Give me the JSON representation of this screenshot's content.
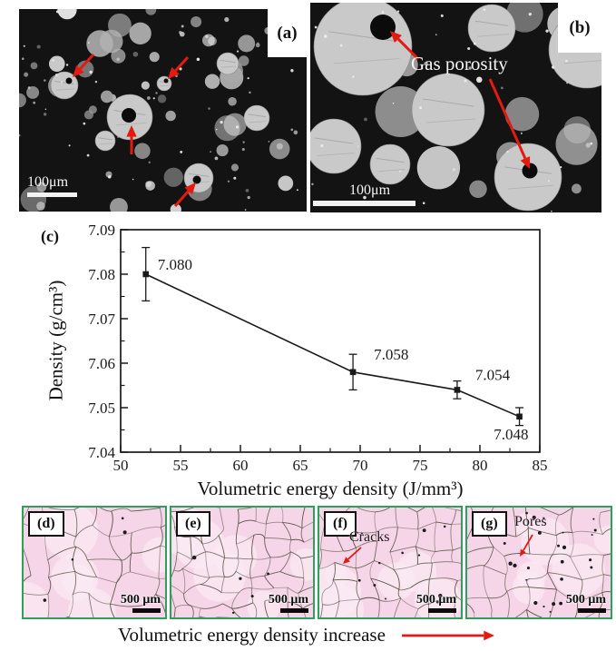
{
  "panels": {
    "a": {
      "label": "(a)",
      "scale_bar": "100μm"
    },
    "b": {
      "label": "(b)",
      "scale_bar": "100μm",
      "annotation": "Gas porosity"
    },
    "c": {
      "label": "(c)"
    },
    "d": {
      "label": "(d)",
      "scale_bar": "500 μm"
    },
    "e": {
      "label": "(e)",
      "scale_bar": "500 μm"
    },
    "f": {
      "label": "(f)",
      "scale_bar": "500 μm",
      "annotation": "Cracks"
    },
    "g": {
      "label": "(g)",
      "scale_bar": "500 μm",
      "annotation": "Pores"
    }
  },
  "caption": {
    "text": "Volumetric energy density increase"
  },
  "chart_data": {
    "type": "line",
    "x": [
      52.1,
      69.4,
      78.1,
      83.3
    ],
    "y": [
      7.08,
      7.058,
      7.054,
      7.048
    ],
    "y_err": [
      0.006,
      0.004,
      0.002,
      0.002
    ],
    "point_labels": [
      "7.080",
      "7.058",
      "7.054",
      "7.048"
    ],
    "xlabel": "Volumetric energy density (J/mm³)",
    "ylabel": "Density (g/cm³)",
    "xlim": [
      50,
      85
    ],
    "ylim": [
      7.04,
      7.09
    ],
    "x_major_ticks": [
      50,
      55,
      60,
      65,
      70,
      75,
      80,
      85
    ],
    "y_major_ticks": [
      7.04,
      7.05,
      7.06,
      7.07,
      7.08,
      7.09
    ],
    "x_minor_step": 2.5,
    "y_minor_step": 0.005,
    "grid": false,
    "legend": false,
    "marker": "square"
  },
  "colors": {
    "arrow_red": "#e41a10",
    "panel_border_green": "#2da05a",
    "micrograph_dark_bg": "#131313",
    "particle_gray": "#c9c9c9",
    "micrograph_pink_bg": "#f6d5e8",
    "crack_line": "#4b4a36",
    "chart_ink": "#1a1a1a"
  }
}
